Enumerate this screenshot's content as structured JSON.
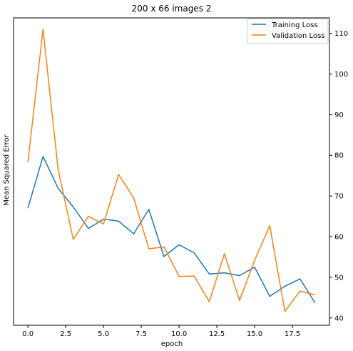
{
  "chart_data": {
    "type": "line",
    "title": "200 x 66 images 2",
    "xlabel": "epoch",
    "ylabel": "Mean Squared Error",
    "x": [
      0,
      1,
      2,
      3,
      4,
      5,
      6,
      7,
      8,
      9,
      10,
      11,
      12,
      13,
      14,
      15,
      16,
      17,
      18,
      19
    ],
    "xlim": [
      -0.95,
      19.95
    ],
    "ylim": [
      38.2,
      113.8
    ],
    "xticks": [
      "0.0",
      "2.5",
      "5.0",
      "7.5",
      "10.0",
      "12.5",
      "15.0",
      "17.5"
    ],
    "xtick_values": [
      0,
      2.5,
      5,
      7.5,
      10,
      12.5,
      15,
      17.5
    ],
    "yticks": [
      "40",
      "50",
      "60",
      "70",
      "80",
      "90",
      "100",
      "110"
    ],
    "ytick_values": [
      40,
      50,
      60,
      70,
      80,
      90,
      100,
      110
    ],
    "y_axis_side": "right",
    "grid": false,
    "legend_position": "top-right",
    "series": [
      {
        "name": "Training Loss",
        "color": "#1f77b4",
        "values": [
          67.0,
          79.7,
          71.9,
          67.3,
          62.0,
          64.3,
          63.8,
          60.7,
          66.7,
          55.1,
          58.0,
          56.0,
          50.8,
          51.1,
          50.4,
          52.5,
          45.3,
          47.8,
          49.6,
          43.7
        ]
      },
      {
        "name": "Validation Loss",
        "color": "#ff7f0e",
        "values": [
          78.3,
          111.0,
          76.5,
          59.3,
          65.0,
          63.1,
          75.3,
          69.5,
          57.0,
          57.5,
          50.2,
          50.3,
          44.0,
          55.8,
          44.3,
          54.2,
          62.7,
          41.6,
          46.6,
          45.7
        ]
      }
    ]
  }
}
